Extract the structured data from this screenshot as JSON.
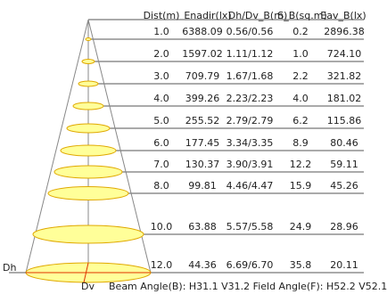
{
  "headers": {
    "dist": "Dist(m)",
    "enadir": "Enadir(lx)",
    "dh_dv": "Dh/Dv_B(m)",
    "s_b": "S_B(sq.m)",
    "eav": "Eav_B(lx)"
  },
  "rows": [
    {
      "dist": "1.0",
      "enadir": "6388.09",
      "dh_dv": "0.56/0.56",
      "s_b": "0.2",
      "eav": "2896.38"
    },
    {
      "dist": "2.0",
      "enadir": "1597.02",
      "dh_dv": "1.11/1.12",
      "s_b": "1.0",
      "eav": "724.10"
    },
    {
      "dist": "3.0",
      "enadir": "709.79",
      "dh_dv": "1.67/1.68",
      "s_b": "2.2",
      "eav": "321.82"
    },
    {
      "dist": "4.0",
      "enadir": "399.26",
      "dh_dv": "2.23/2.23",
      "s_b": "4.0",
      "eav": "181.02"
    },
    {
      "dist": "5.0",
      "enadir": "255.52",
      "dh_dv": "2.79/2.79",
      "s_b": "6.2",
      "eav": "115.86"
    },
    {
      "dist": "6.0",
      "enadir": "177.45",
      "dh_dv": "3.34/3.35",
      "s_b": "8.9",
      "eav": "80.46"
    },
    {
      "dist": "7.0",
      "enadir": "130.37",
      "dh_dv": "3.90/3.91",
      "s_b": "12.2",
      "eav": "59.11"
    },
    {
      "dist": "8.0",
      "enadir": "99.81",
      "dh_dv": "4.46/4.47",
      "s_b": "15.9",
      "eav": "45.26"
    },
    {
      "dist": "10.0",
      "enadir": "63.88",
      "dh_dv": "5.57/5.58",
      "s_b": "24.9",
      "eav": "28.96"
    },
    {
      "dist": "12.0",
      "enadir": "44.36",
      "dh_dv": "6.69/6.70",
      "s_b": "35.8",
      "eav": "20.11"
    }
  ],
  "labels": {
    "dh": "Dh",
    "dv": "Dv",
    "footer": "Beam Angle(B): H31.1 V31.2  Field Angle(F): H52.2 V52.1"
  },
  "colors": {
    "ellipse_fill": "#ffff99",
    "ellipse_stroke": "#e0a800",
    "cone_line": "#888888",
    "row_line": "#555555",
    "dim_line": "#e03000"
  }
}
